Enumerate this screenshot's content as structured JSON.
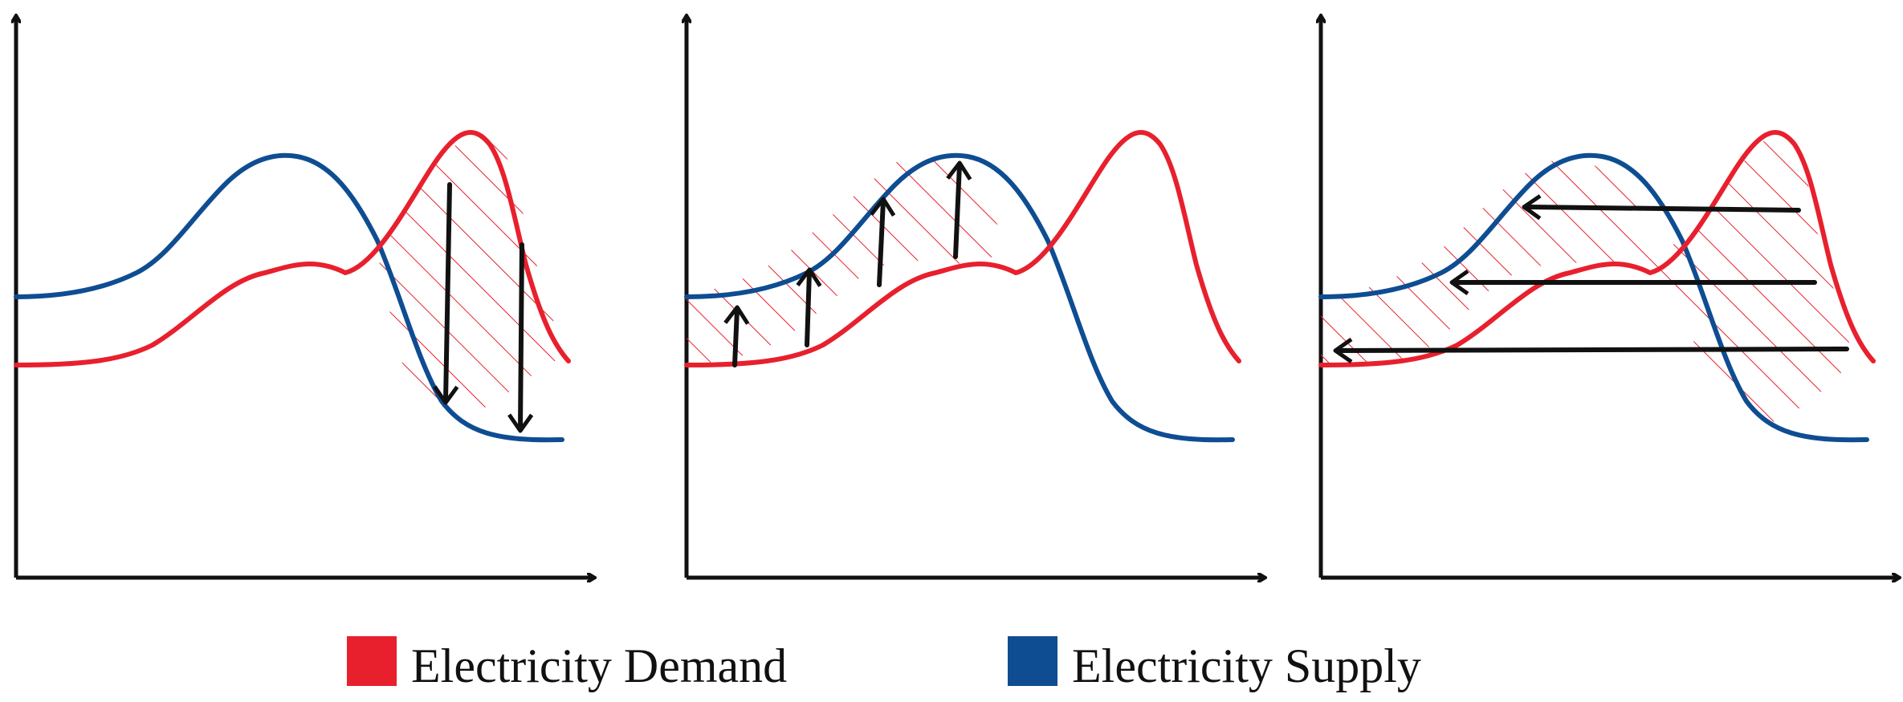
{
  "colors": {
    "demand": "#e8202d",
    "supply": "#0e4d92",
    "axis": "#111111",
    "arrow": "#111111",
    "hatch": "#e8202d"
  },
  "legend": {
    "demand_label": "Electricity Demand",
    "supply_label": "Electricity Supply"
  },
  "panels": [
    {
      "name": "panel-demand-reduction",
      "shift_direction": "down"
    },
    {
      "name": "panel-demand-increase",
      "shift_direction": "up"
    },
    {
      "name": "panel-demand-shifting",
      "shift_direction": "left"
    }
  ]
}
